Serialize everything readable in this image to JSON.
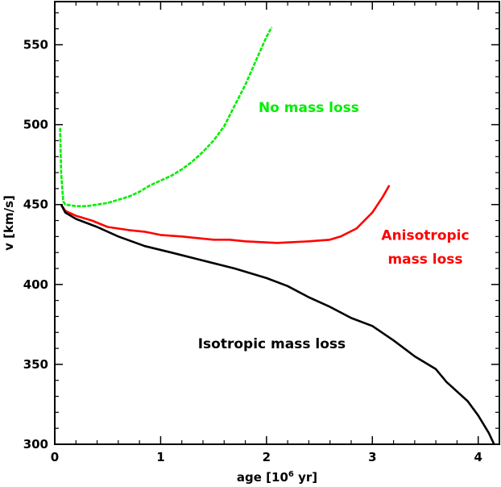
{
  "chart_data": {
    "type": "line",
    "xlabel_main": "age [10",
    "xlabel_sup": "6",
    "xlabel_tail": " yr]",
    "ylabel": "v [km/s]",
    "xlim": [
      0,
      4.2
    ],
    "ylim": [
      300,
      577
    ],
    "x_ticks": [
      0,
      1,
      2,
      3,
      4
    ],
    "x_tick_labels": [
      "0",
      "1",
      "2",
      "3",
      "4"
    ],
    "y_ticks": [
      300,
      350,
      400,
      450,
      500,
      550
    ],
    "y_tick_labels": [
      "300",
      "350",
      "400",
      "450",
      "500",
      "550"
    ],
    "grid": false,
    "series": [
      {
        "name": "No mass loss",
        "color": "#00ee00",
        "dashed": true,
        "points": [
          [
            0.05,
            498
          ],
          [
            0.06,
            470
          ],
          [
            0.08,
            452
          ],
          [
            0.1,
            450
          ],
          [
            0.2,
            449
          ],
          [
            0.3,
            449
          ],
          [
            0.4,
            450
          ],
          [
            0.5,
            451
          ],
          [
            0.6,
            453
          ],
          [
            0.7,
            455
          ],
          [
            0.8,
            458
          ],
          [
            0.9,
            462
          ],
          [
            1.0,
            465
          ],
          [
            1.1,
            468
          ],
          [
            1.2,
            472
          ],
          [
            1.3,
            477
          ],
          [
            1.4,
            483
          ],
          [
            1.5,
            490
          ],
          [
            1.6,
            499
          ],
          [
            1.7,
            512
          ],
          [
            1.8,
            525
          ],
          [
            1.9,
            540
          ],
          [
            2.0,
            555
          ],
          [
            2.05,
            561
          ]
        ]
      },
      {
        "name": "Anisotropic mass loss",
        "color": "#ff0000",
        "dashed": false,
        "points": [
          [
            0.06,
            450
          ],
          [
            0.1,
            446
          ],
          [
            0.2,
            443
          ],
          [
            0.35,
            440
          ],
          [
            0.5,
            436
          ],
          [
            0.7,
            434
          ],
          [
            0.85,
            433
          ],
          [
            1.0,
            431
          ],
          [
            1.2,
            430
          ],
          [
            1.5,
            428
          ],
          [
            1.65,
            428
          ],
          [
            1.8,
            427
          ],
          [
            2.1,
            426
          ],
          [
            2.4,
            427
          ],
          [
            2.6,
            428
          ],
          [
            2.7,
            430
          ],
          [
            2.85,
            435
          ],
          [
            3.0,
            445
          ],
          [
            3.1,
            455
          ],
          [
            3.16,
            462
          ]
        ]
      },
      {
        "name": "Isotropic mass loss",
        "color": "#000000",
        "dashed": false,
        "points": [
          [
            0.06,
            450
          ],
          [
            0.1,
            445
          ],
          [
            0.2,
            441
          ],
          [
            0.4,
            436
          ],
          [
            0.6,
            430
          ],
          [
            0.85,
            424
          ],
          [
            1.1,
            420
          ],
          [
            1.4,
            415
          ],
          [
            1.7,
            410
          ],
          [
            2.0,
            404
          ],
          [
            2.2,
            399
          ],
          [
            2.4,
            392
          ],
          [
            2.6,
            386
          ],
          [
            2.8,
            379
          ],
          [
            3.0,
            374
          ],
          [
            3.2,
            365
          ],
          [
            3.4,
            355
          ],
          [
            3.6,
            347
          ],
          [
            3.7,
            339
          ],
          [
            3.9,
            327
          ],
          [
            4.0,
            318
          ],
          [
            4.1,
            307
          ],
          [
            4.15,
            300
          ]
        ]
      }
    ],
    "annotations": [
      {
        "text": "No mass loss",
        "color": "#00ee00",
        "x": 2.4,
        "y": 508
      },
      {
        "text": "Anisotropic",
        "color": "#ff0000",
        "x": 3.5,
        "y": 428
      },
      {
        "text": "mass loss",
        "color": "#ff0000",
        "x": 3.5,
        "y": 413
      },
      {
        "text": "Isotropic mass loss",
        "color": "#000000",
        "x": 2.05,
        "y": 360
      }
    ]
  }
}
